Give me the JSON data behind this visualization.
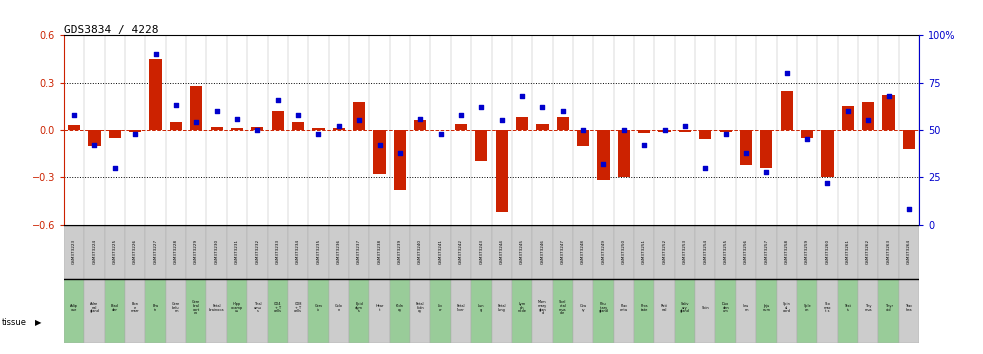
{
  "title": "GDS3834 / 4228",
  "gsm_ids": [
    "GSM373223",
    "GSM373224",
    "GSM373225",
    "GSM373226",
    "GSM373227",
    "GSM373228",
    "GSM373229",
    "GSM373230",
    "GSM373231",
    "GSM373232",
    "GSM373233",
    "GSM373234",
    "GSM373235",
    "GSM373236",
    "GSM373237",
    "GSM373238",
    "GSM373239",
    "GSM373240",
    "GSM373241",
    "GSM373242",
    "GSM373243",
    "GSM373244",
    "GSM373245",
    "GSM373246",
    "GSM373247",
    "GSM373248",
    "GSM373249",
    "GSM373250",
    "GSM373251",
    "GSM373252",
    "GSM373253",
    "GSM373254",
    "GSM373255",
    "GSM373256",
    "GSM373257",
    "GSM373258",
    "GSM373259",
    "GSM373260",
    "GSM373261",
    "GSM373262",
    "GSM373263",
    "GSM373264"
  ],
  "tissues": [
    "Adip\nose",
    "Adre\nnal\ngland",
    "Blad\nder",
    "Bon\ne\nmarr",
    "Bra\nin",
    "Cere\nbelu\nm",
    "Cere\nbral\ncort\nex",
    "Fetal\nbrainoca",
    "Hipp\nocamp\nus",
    "Thal\namu\ns",
    "CD4\n+ T\ncells",
    "CD8\n+ T\ncells",
    "Cerv\nix",
    "Colo\nn",
    "Epid\ndym\nis",
    "Hear\nt",
    "Kidn\ney",
    "Fetal\nkidn\ney",
    "Liv\ner",
    "Fetal\nliver",
    "Lun\ng",
    "Fetal\nlung",
    "Lym\nph\nnode",
    "Mam\nmary\nglan\nd",
    "Skel\netal\nmus\ncle",
    "Ova\nry",
    "Pitu\nitary\ngland",
    "Plac\nenta",
    "Pros\ntate",
    "Reti\nnal",
    "Saliv\nary\ngland",
    "Skin",
    "Duo\nden\num",
    "Ileu\nm",
    "Jeju\nnum",
    "Spin\nal\ncord",
    "Sple\nen",
    "Sto\nmac\nt s",
    "Test\nis",
    "Thy\nmus",
    "Thyr\noid",
    "Trac\nhea"
  ],
  "log10_ratio": [
    0.03,
    -0.1,
    -0.05,
    -0.01,
    0.45,
    0.05,
    0.28,
    0.02,
    0.01,
    0.02,
    0.12,
    0.05,
    0.01,
    0.01,
    0.18,
    -0.28,
    -0.38,
    0.06,
    0.0,
    0.04,
    -0.2,
    -0.52,
    0.08,
    0.04,
    0.08,
    -0.1,
    -0.32,
    -0.3,
    -0.02,
    -0.01,
    -0.01,
    -0.06,
    -0.01,
    -0.22,
    -0.24,
    0.25,
    -0.05,
    -0.3,
    0.15,
    0.18,
    0.22,
    -0.12
  ],
  "percentile_rank": [
    58,
    42,
    30,
    48,
    90,
    63,
    54,
    60,
    56,
    50,
    66,
    58,
    48,
    52,
    55,
    42,
    38,
    56,
    48,
    58,
    62,
    55,
    68,
    62,
    60,
    50,
    32,
    50,
    42,
    50,
    52,
    30,
    48,
    38,
    28,
    80,
    45,
    22,
    60,
    55,
    68,
    8
  ],
  "ylim": [
    -0.6,
    0.6
  ],
  "yticks_left": [
    -0.6,
    -0.3,
    0.0,
    0.3,
    0.6
  ],
  "yticks_right_labels": [
    "0",
    "25",
    "50",
    "75",
    "100%"
  ],
  "bar_color": "#cc2200",
  "dot_color": "#0000cc",
  "zero_line_color": "#cc2200",
  "dotted_line_color": "#000000",
  "bg_color": "#ffffff",
  "tissue_bg_green": "#99cc99",
  "tissue_bg_grey": "#cccccc",
  "label_color_left": "#cc2200",
  "label_color_right": "#0000cc",
  "col_sep_color": "#aaaaaa",
  "spine_color": "#000000"
}
